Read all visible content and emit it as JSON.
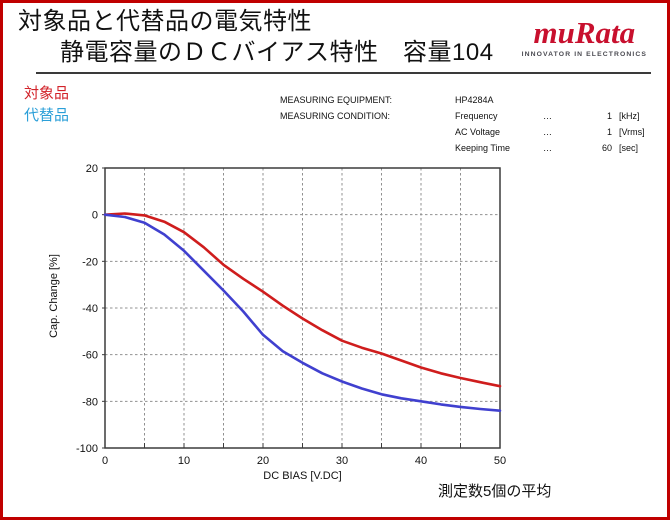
{
  "header": {
    "title_line1": "対象品と代替品の電気特性",
    "title_line2": "静電容量のＤＣバイアス特性　容量104"
  },
  "logo": {
    "brand": "muRata",
    "tagline": "INNOVATOR IN ELECTRONICS",
    "color": "#c8102e"
  },
  "legend": {
    "items": [
      {
        "label": "対象品",
        "color": "#d2232a"
      },
      {
        "label": "代替品",
        "color": "#2b9fd8"
      }
    ]
  },
  "conditions": {
    "equipment_label": "MEASURING EQUIPMENT:",
    "equipment_value": "HP4284A",
    "condition_label": "MEASURING CONDITION:",
    "rows": [
      {
        "name": "Frequency",
        "dots": "…",
        "value": "1",
        "unit": "[kHz]"
      },
      {
        "name": "AC Voltage",
        "dots": "…",
        "value": "1",
        "unit": "[Vrms]"
      },
      {
        "name": "Keeping Time",
        "dots": "…",
        "value": "60",
        "unit": "[sec]"
      }
    ]
  },
  "chart_data": {
    "type": "line",
    "title": "",
    "xlabel": "DC BIAS [V.DC]",
    "ylabel": "Cap. Change [%]",
    "xlim": [
      0,
      50
    ],
    "ylim": [
      -100,
      20
    ],
    "xticks": [
      0,
      10,
      20,
      30,
      40,
      50
    ],
    "yticks": [
      20,
      0,
      -20,
      -40,
      -60,
      -80,
      -100
    ],
    "x_grid_step": 5,
    "y_grid_step": 20,
    "grid": true,
    "legend_position": "outside-top-left",
    "x": [
      0,
      2.5,
      5,
      7.5,
      10,
      12.5,
      15,
      17.5,
      20,
      22.5,
      25,
      27.5,
      30,
      32.5,
      35,
      37.5,
      40,
      42.5,
      45,
      47.5,
      50
    ],
    "series": [
      {
        "name": "対象品",
        "color": "#cf1d1d",
        "values": [
          0,
          0.5,
          -0.3,
          -3,
          -7.5,
          -14,
          -21.5,
          -27.5,
          -33,
          -39,
          -44.5,
          -49.5,
          -54,
          -57,
          -59.5,
          -62.5,
          -65.5,
          -68,
          -70,
          -71.8,
          -73.5
        ]
      },
      {
        "name": "代替品",
        "color": "#4040cf",
        "values": [
          0,
          -1,
          -3.5,
          -8.5,
          -15.5,
          -24,
          -32.5,
          -41.5,
          -51.5,
          -58.5,
          -63.5,
          -68,
          -71.5,
          -74.5,
          -77,
          -78.7,
          -80,
          -81.3,
          -82.4,
          -83.3,
          -84
        ]
      }
    ]
  },
  "footer": {
    "note": "測定数5個の平均"
  }
}
